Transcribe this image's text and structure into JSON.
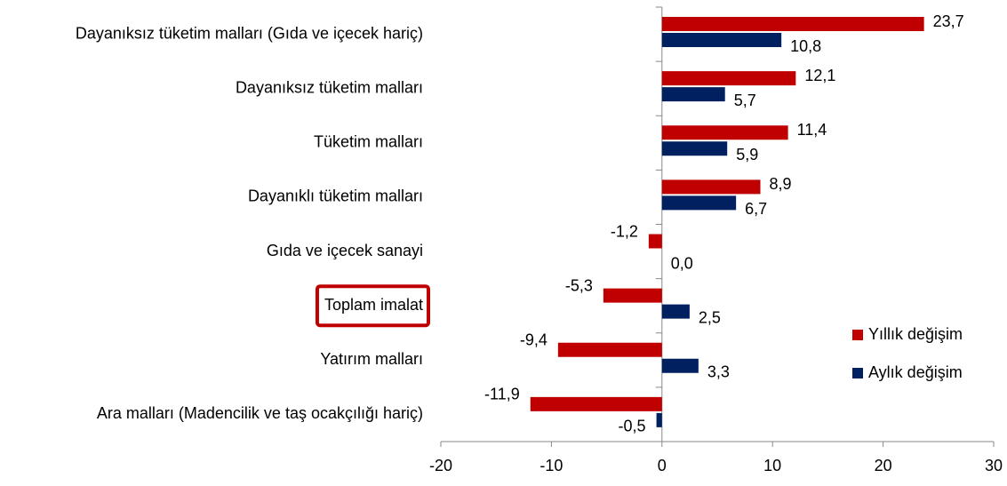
{
  "chart_data": {
    "type": "bar",
    "orientation": "horizontal",
    "categories": [
      "Dayanıksız tüketim malları (Gıda ve içecek hariç)",
      "Dayanıksız tüketim malları",
      "Tüketim malları",
      "Dayanıklı tüketim malları",
      "Gıda ve içecek sanayi",
      "Toplam imalat",
      "Yatırım malları",
      "Ara malları (Madencilik ve taş ocakçılığı hariç)"
    ],
    "highlighted_category": 5,
    "series": [
      {
        "name": "Yıllık değişim",
        "color": "#c00000",
        "values": [
          23.7,
          12.1,
          11.4,
          8.9,
          -1.2,
          -5.3,
          -9.4,
          -11.9
        ],
        "value_labels": [
          "23,7",
          "12,1",
          "11,4",
          "8,9",
          "-1,2",
          "-5,3",
          "-9,4",
          "-11,9"
        ]
      },
      {
        "name": "Aylık değişim",
        "color": "#002060",
        "values": [
          10.8,
          5.7,
          5.9,
          6.7,
          0.0,
          2.5,
          3.3,
          -0.5
        ],
        "value_labels": [
          "10,8",
          "5,7",
          "5,9",
          "6,7",
          "0,0",
          "2,5",
          "3,3",
          "-0,5"
        ]
      }
    ],
    "xlim": [
      -20,
      30
    ],
    "xticks": [
      -20,
      -10,
      0,
      10,
      20,
      30
    ],
    "legend": "right"
  }
}
